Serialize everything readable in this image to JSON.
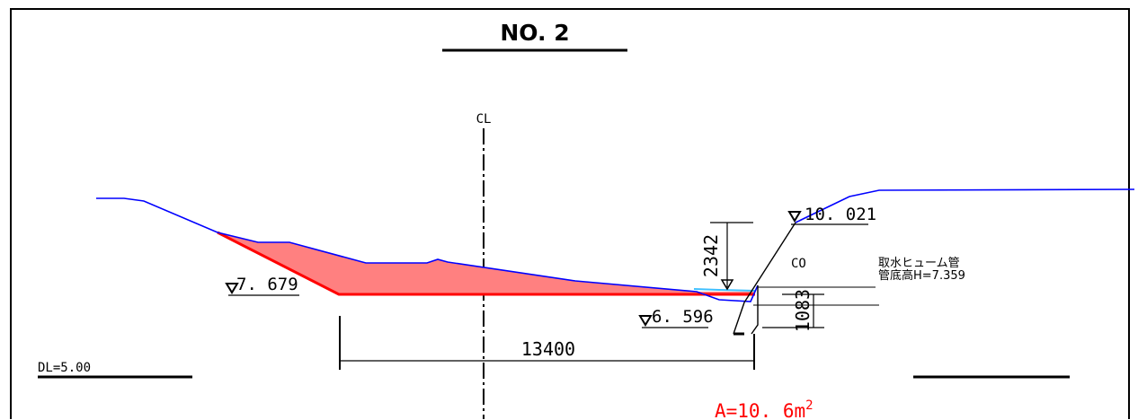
{
  "title": "NO. 2",
  "centerline_label": "CL",
  "datum_label": "DL=5.00",
  "elevations": {
    "left": "7. 679",
    "bottom": "6. 596",
    "right_top": "10. 021"
  },
  "dimensions": {
    "width": "13400",
    "vertical_upper": "2342",
    "vertical_lower": "1083"
  },
  "material_label": "CO",
  "pipe_note": {
    "line1": "取水ヒューム管",
    "line2": "管底高H=7.359"
  },
  "area": {
    "text": "A=10. 6m",
    "sup": "2",
    "color": "#ff0000"
  },
  "colors": {
    "ground_line": "#0000ff",
    "fill_area": "#ff8080",
    "fill_edge": "#ff0000",
    "water": "#40c0ff"
  }
}
